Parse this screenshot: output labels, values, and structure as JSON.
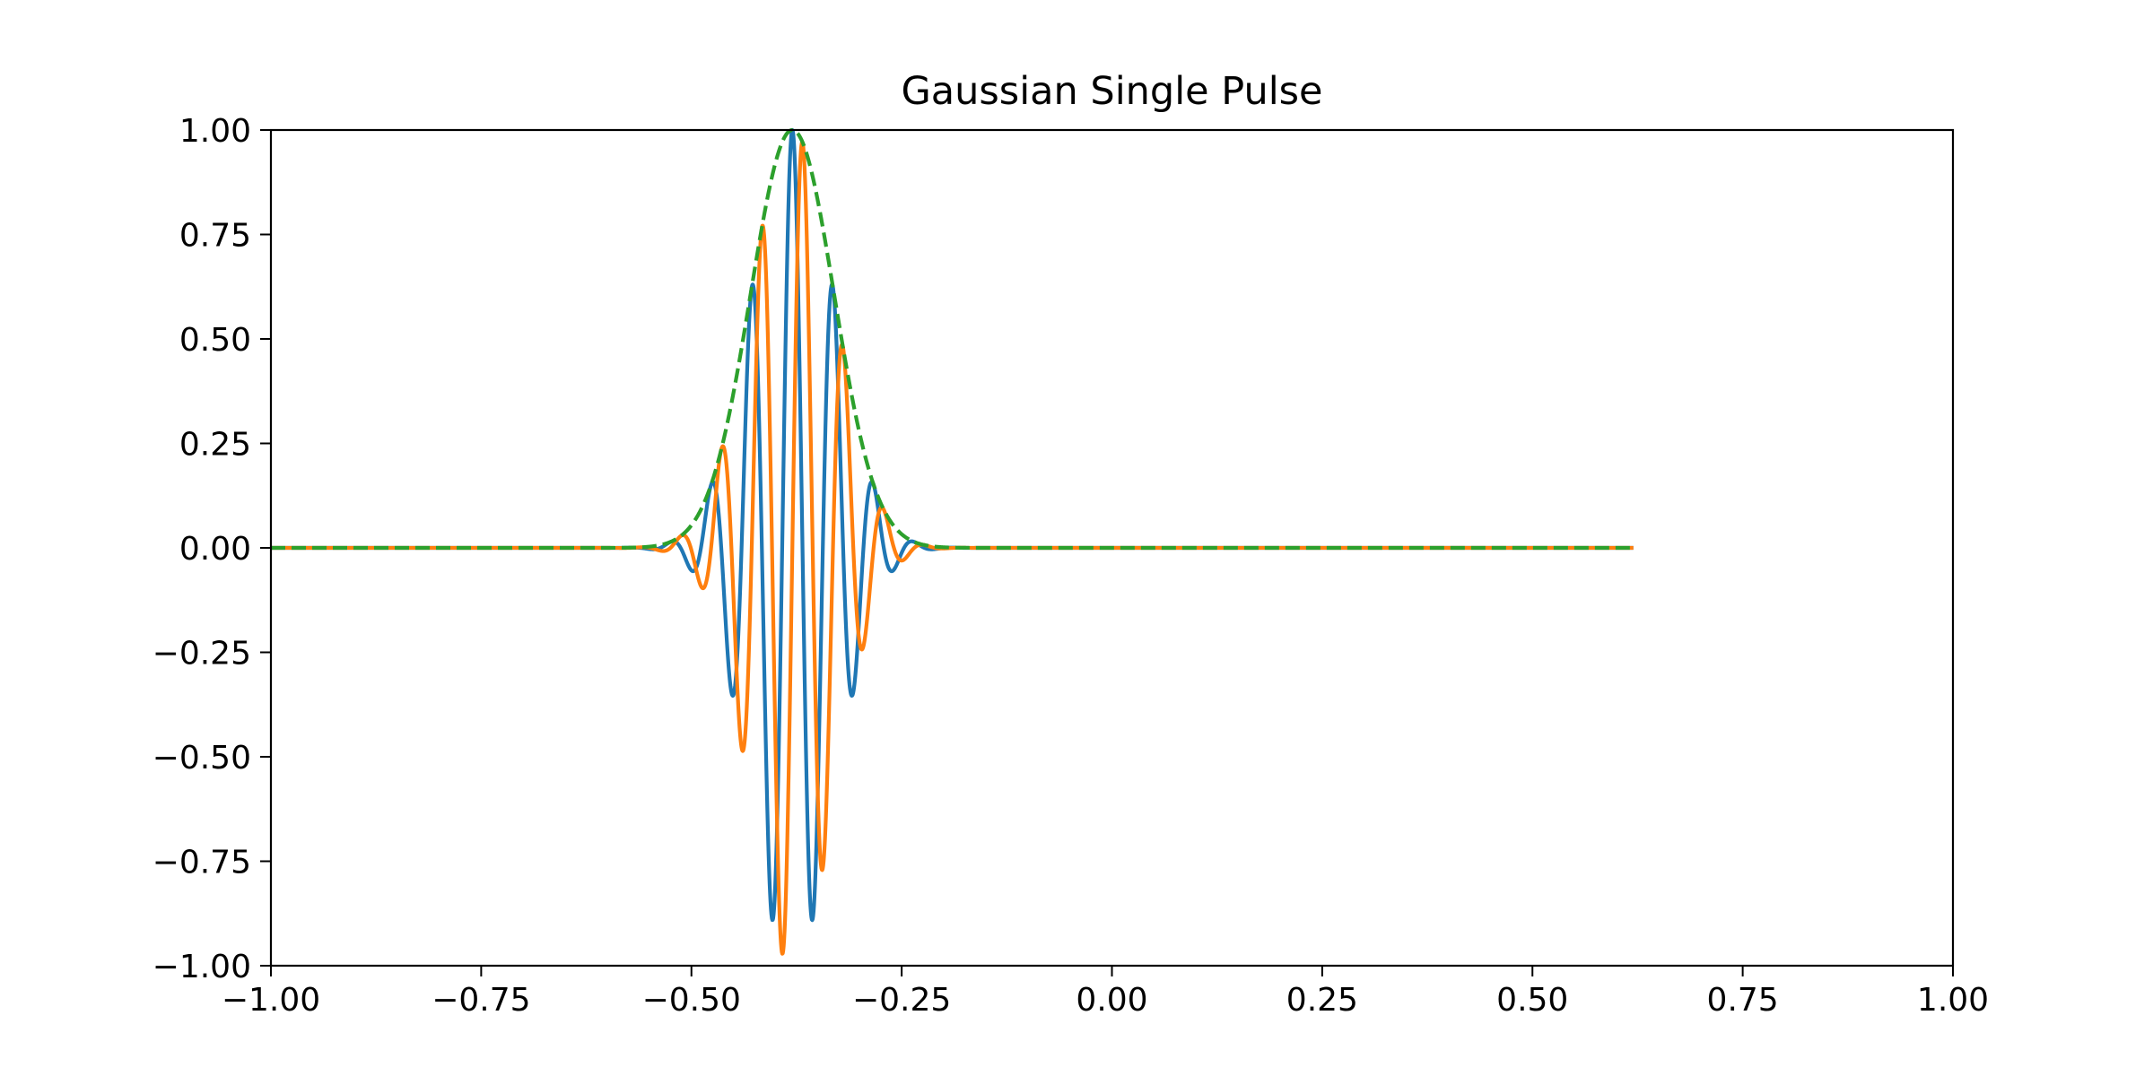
{
  "chart_data": {
    "type": "line",
    "title": "Gaussian Single Pulse",
    "xlabel": "",
    "ylabel": "",
    "xlim": [
      -1.0,
      1.0
    ],
    "ylim": [
      -1.0,
      1.0
    ],
    "grid": false,
    "legend": "none",
    "x_ticks": [
      "−1.00",
      "−0.75",
      "−0.50",
      "−0.25",
      "0.00",
      "0.25",
      "0.50",
      "0.75",
      "1.00"
    ],
    "y_ticks": [
      "1.00",
      "0.75",
      "0.50",
      "0.25",
      "0.00",
      "−0.25",
      "−0.50",
      "−0.75",
      "−1.00"
    ],
    "x_range": [
      -1.0,
      0.62
    ],
    "pulse": {
      "center": -0.38,
      "center_frequency": 20.7,
      "bandwidth_sigma": 0.0497
    },
    "series": [
      {
        "kind": "in-phase",
        "color": "#1f77b4",
        "dash": "solid"
      },
      {
        "kind": "quadrature",
        "color": "#ff7f0e",
        "dash": "solid"
      },
      {
        "kind": "envelope",
        "color": "#2ca02c",
        "dash": "dashed"
      }
    ]
  }
}
